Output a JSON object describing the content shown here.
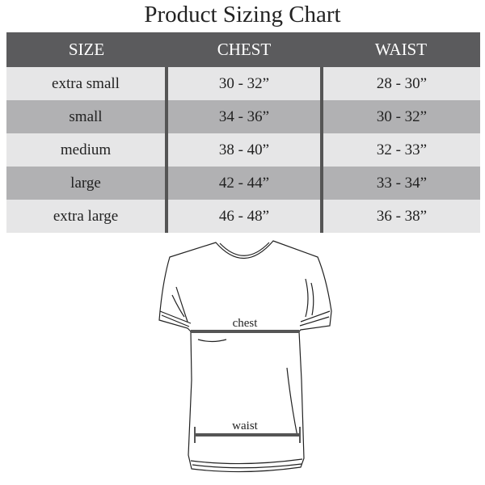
{
  "title": "Product Sizing Chart",
  "table": {
    "headers": [
      "SIZE",
      "CHEST",
      "WAIST"
    ],
    "rows": [
      [
        "extra small",
        "30 - 32”",
        "28 - 30”"
      ],
      [
        "small",
        "34 - 36”",
        "30 - 32”"
      ],
      [
        "medium",
        "38 - 40”",
        "32 - 33”"
      ],
      [
        "large",
        "42 - 44”",
        "33 - 34”"
      ],
      [
        "extra large",
        "46 - 48”",
        "36 - 38”"
      ]
    ]
  },
  "diagram": {
    "chest_label": "chest",
    "waist_label": "waist"
  },
  "colors": {
    "header": "#5b5b5d",
    "row_light": "#e6e6e7",
    "row_dark": "#b1b1b3",
    "measure_line": "#555555"
  }
}
